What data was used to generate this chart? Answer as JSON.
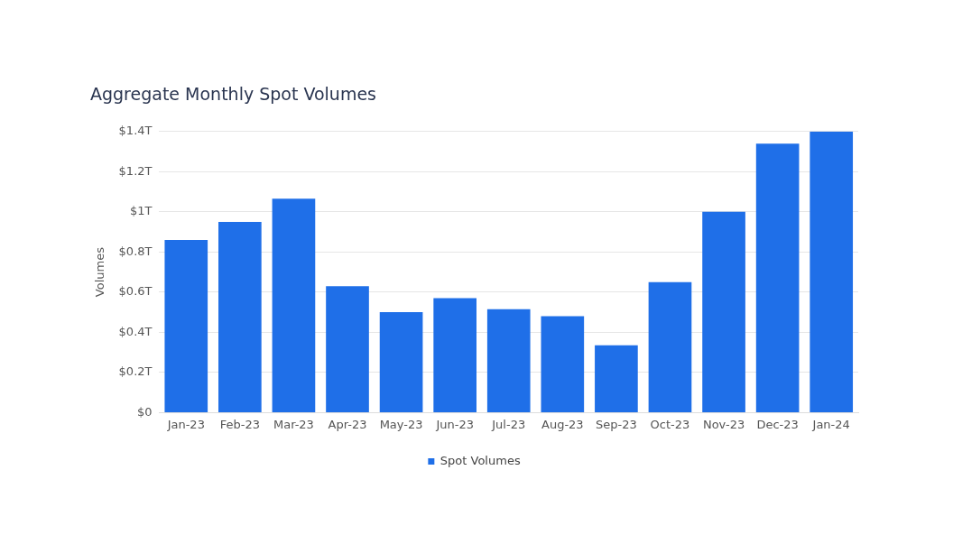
{
  "chart_data": {
    "type": "bar",
    "title": "Aggregate Monthly Spot Volumes",
    "ylabel": "Volumes",
    "categories": [
      "Jan-23",
      "Feb-23",
      "Mar-23",
      "Apr-23",
      "May-23",
      "Jun-23",
      "Jul-23",
      "Aug-23",
      "Sep-23",
      "Oct-23",
      "Nov-23",
      "Dec-23",
      "Jan-24"
    ],
    "series": [
      {
        "name": "Spot Volumes",
        "color": "#1f6fe8",
        "values": [
          0.86,
          0.95,
          1.065,
          0.63,
          0.5,
          0.57,
          0.515,
          0.48,
          0.335,
          0.65,
          1.0,
          1.34,
          1.4
        ]
      }
    ],
    "ylim": [
      0,
      1.4
    ],
    "yticks": [
      {
        "value": 0,
        "label": "$0"
      },
      {
        "value": 0.2,
        "label": "$0.2T"
      },
      {
        "value": 0.4,
        "label": "$0.4T"
      },
      {
        "value": 0.6,
        "label": "$0.6T"
      },
      {
        "value": 0.8,
        "label": "$0.8T"
      },
      {
        "value": 1,
        "label": "$1T"
      },
      {
        "value": 1.2,
        "label": "$1.2T"
      },
      {
        "value": 1.4,
        "label": "$1.4T"
      }
    ],
    "grid": "y",
    "legend": "bottom"
  }
}
